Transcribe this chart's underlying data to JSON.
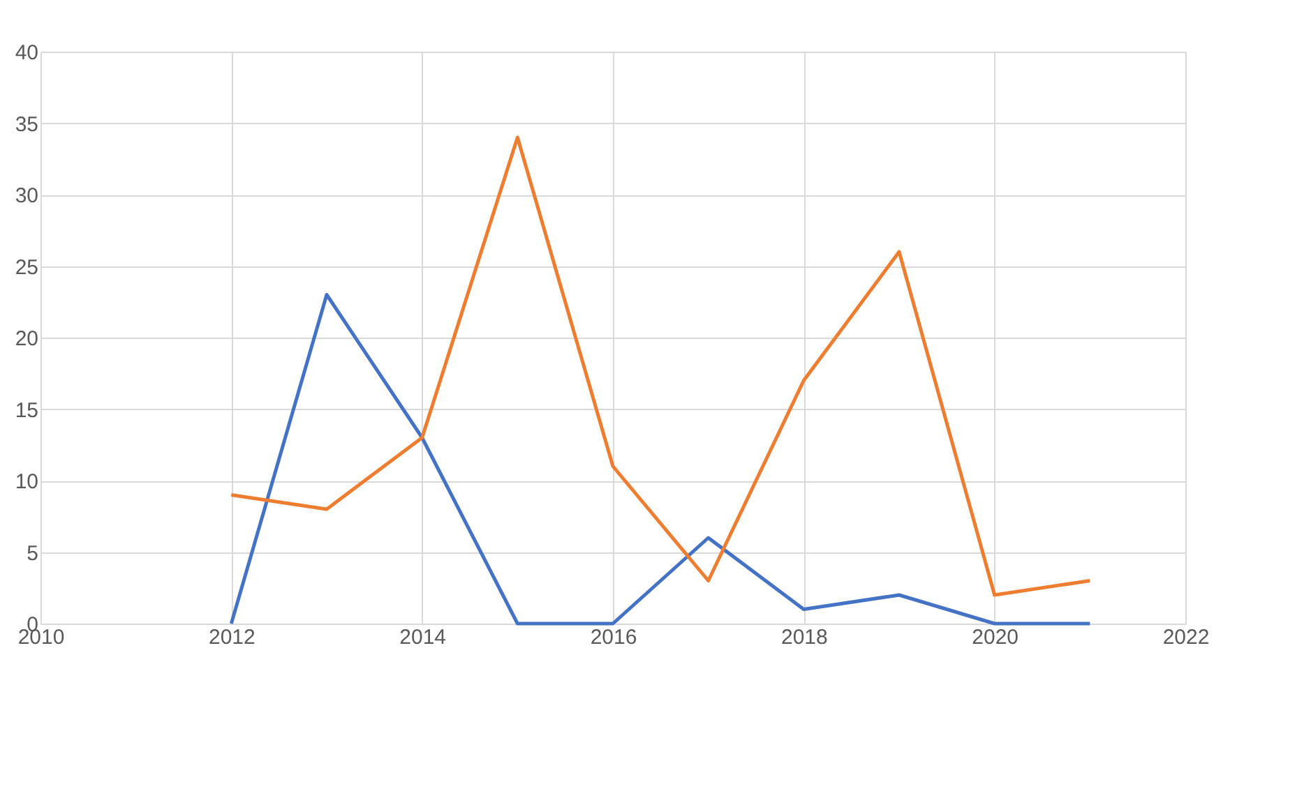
{
  "chart_data": {
    "type": "line",
    "x": [
      2012,
      2013,
      2014,
      2015,
      2016,
      2017,
      2018,
      2019,
      2020,
      2021
    ],
    "series": [
      {
        "color": "#4472c4",
        "values": [
          0,
          23,
          13,
          0,
          0,
          6,
          1,
          2,
          0,
          0
        ]
      },
      {
        "color": "#ed7d31",
        "values": [
          9,
          8,
          13,
          34,
          11,
          3,
          17,
          26,
          2,
          3
        ]
      }
    ],
    "xlim": [
      2010,
      2022
    ],
    "xticks": [
      2010,
      2012,
      2014,
      2016,
      2018,
      2020,
      2022
    ],
    "ylim": [
      0,
      40
    ],
    "yticks": [
      0,
      5,
      10,
      15,
      20,
      25,
      30,
      35,
      40
    ],
    "grid": true,
    "marker": "none",
    "line_style": "solid"
  }
}
